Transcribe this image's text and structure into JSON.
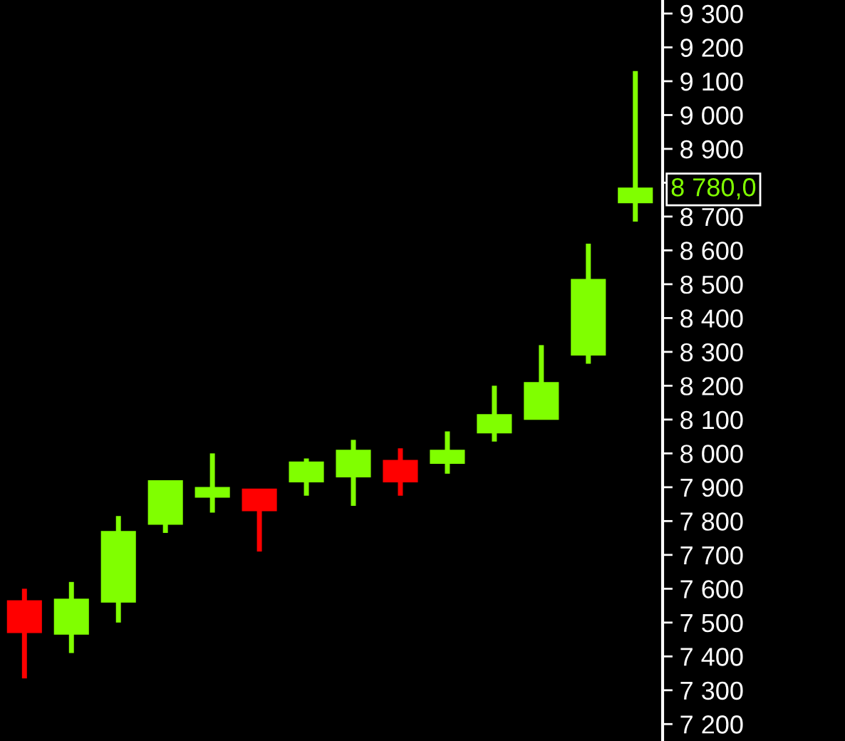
{
  "chart_data": {
    "type": "candlestick",
    "categories": [
      null,
      null,
      null,
      null,
      null,
      null,
      null,
      null,
      null,
      null,
      null,
      null,
      null,
      null
    ],
    "ohlc": [
      [
        7560,
        7600,
        7335,
        7475
      ],
      [
        7470,
        7620,
        7410,
        7565
      ],
      [
        7565,
        7815,
        7500,
        7765
      ],
      [
        7795,
        7915,
        7765,
        7915
      ],
      [
        7875,
        8000,
        7825,
        7895
      ],
      [
        7890,
        7890,
        7710,
        7835
      ],
      [
        7920,
        7985,
        7875,
        7970
      ],
      [
        7935,
        8040,
        7845,
        8005
      ],
      [
        7975,
        8015,
        7875,
        7920
      ],
      [
        7975,
        8065,
        7940,
        8005
      ],
      [
        8065,
        8200,
        8035,
        8110
      ],
      [
        8105,
        8320,
        8100,
        8205
      ],
      [
        8295,
        8620,
        8265,
        8510
      ],
      [
        8745,
        9130,
        8685,
        8780
      ]
    ],
    "colors": [
      "#ff0000",
      "#80ff00",
      "#80ff00",
      "#80ff00",
      "#80ff00",
      "#ff0000",
      "#80ff00",
      "#80ff00",
      "#ff0000",
      "#80ff00",
      "#80ff00",
      "#80ff00",
      "#80ff00",
      "#80ff00"
    ],
    "ylim": [
      7150,
      9340
    ],
    "yticks": [
      {
        "value": 7200,
        "label": "7 200"
      },
      {
        "value": 7300,
        "label": "7 300"
      },
      {
        "value": 7400,
        "label": "7 400"
      },
      {
        "value": 7500,
        "label": "7 500"
      },
      {
        "value": 7600,
        "label": "7 600"
      },
      {
        "value": 7700,
        "label": "7 700"
      },
      {
        "value": 7800,
        "label": "7 800"
      },
      {
        "value": 7900,
        "label": "7 900"
      },
      {
        "value": 8000,
        "label": "8 000"
      },
      {
        "value": 8100,
        "label": "8 100"
      },
      {
        "value": 8200,
        "label": "8 200"
      },
      {
        "value": 8300,
        "label": "8 300"
      },
      {
        "value": 8400,
        "label": "8 400"
      },
      {
        "value": 8500,
        "label": "8 500"
      },
      {
        "value": 8600,
        "label": "8 600"
      },
      {
        "value": 8700,
        "label": "8 700"
      },
      {
        "value": 8800,
        "label": null
      },
      {
        "value": 8900,
        "label": "8 900"
      },
      {
        "value": 9000,
        "label": "9 000"
      },
      {
        "value": 9100,
        "label": "9 100"
      },
      {
        "value": 9200,
        "label": "9 200"
      },
      {
        "value": 9300,
        "label": "9 300"
      }
    ],
    "tick_labels": "y",
    "grid": false,
    "legend": false,
    "annotations": [
      "8 780,0"
    ]
  }
}
